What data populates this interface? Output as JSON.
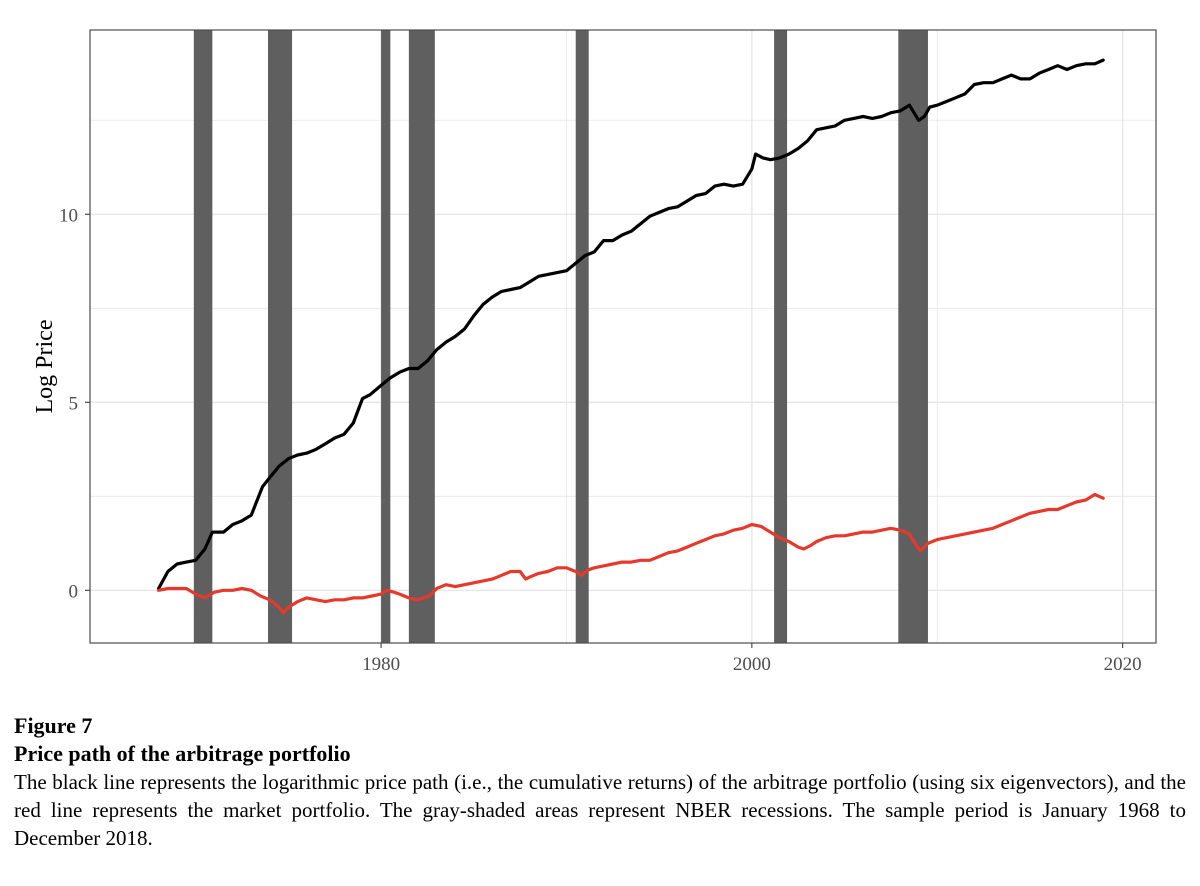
{
  "figure": {
    "label": "Figure 7",
    "title": "Price path of the arbitrage portfolio",
    "caption": "The black line represents the logarithmic price path (i.e., the cumulative returns) of the arbitrage portfolio (using six eigenvectors), and the red line represents the market portfolio. The gray-shaded areas represent NBER recessions. The sample period is January 1968 to December 2018."
  },
  "colors": {
    "arbitrage": "#000000",
    "market": "#e53a2b",
    "recession": "#5f5f5f",
    "grid": "#e6e6e6",
    "frame": "#4d4d4d"
  },
  "chart_data": {
    "type": "line",
    "xlabel": "",
    "ylabel": "Log Price",
    "xlim": [
      1964.3,
      2021.8
    ],
    "ylim": [
      -1.4,
      14.9
    ],
    "xticks": [
      1980,
      2000,
      2020
    ],
    "yticks": [
      0,
      5,
      10
    ],
    "grid": true,
    "legend": "none",
    "recessions": [
      [
        1969.9,
        1970.9
      ],
      [
        1973.9,
        1975.2
      ],
      [
        1980.0,
        1980.5
      ],
      [
        1981.5,
        1982.9
      ],
      [
        1990.5,
        1991.2
      ],
      [
        2001.2,
        2001.9
      ],
      [
        2007.9,
        2009.5
      ]
    ],
    "series": [
      {
        "key": "arbitrage",
        "x": [
          1968.0,
          1968.5,
          1969.0,
          1969.5,
          1970.0,
          1970.5,
          1970.9,
          1971.5,
          1972.0,
          1972.5,
          1973.0,
          1973.6,
          1974.0,
          1974.5,
          1975.0,
          1975.5,
          1976.0,
          1976.5,
          1977.0,
          1977.5,
          1978.0,
          1978.5,
          1979.0,
          1979.4,
          1980.0,
          1980.5,
          1981.0,
          1981.5,
          1982.0,
          1982.5,
          1983.0,
          1983.5,
          1984.0,
          1984.5,
          1985.0,
          1985.5,
          1986.0,
          1986.5,
          1987.0,
          1987.5,
          1988.0,
          1988.5,
          1989.0,
          1989.5,
          1990.0,
          1990.5,
          1991.0,
          1991.5,
          1992.0,
          1992.5,
          1993.0,
          1993.5,
          1994.0,
          1994.5,
          1995.0,
          1995.5,
          1996.0,
          1996.5,
          1997.0,
          1997.5,
          1998.0,
          1998.5,
          1999.0,
          1999.5,
          2000.0,
          2000.2,
          2000.6,
          2001.0,
          2001.5,
          2002.0,
          2002.5,
          2003.0,
          2003.5,
          2004.0,
          2004.5,
          2005.0,
          2005.5,
          2006.0,
          2006.5,
          2007.0,
          2007.5,
          2008.0,
          2008.5,
          2009.0,
          2009.3,
          2009.6,
          2010.0,
          2010.5,
          2011.0,
          2011.5,
          2012.0,
          2012.5,
          2013.0,
          2013.5,
          2014.0,
          2014.5,
          2015.0,
          2015.5,
          2016.0,
          2016.5,
          2017.0,
          2017.5,
          2018.0,
          2018.5,
          2018.95
        ],
        "y": [
          0.05,
          0.5,
          0.7,
          0.75,
          0.8,
          1.1,
          1.55,
          1.55,
          1.75,
          1.85,
          2.0,
          2.75,
          3.0,
          3.3,
          3.5,
          3.6,
          3.65,
          3.75,
          3.9,
          4.05,
          4.15,
          4.45,
          5.1,
          5.2,
          5.45,
          5.65,
          5.8,
          5.9,
          5.9,
          6.1,
          6.4,
          6.6,
          6.75,
          6.95,
          7.3,
          7.6,
          7.8,
          7.95,
          8.0,
          8.05,
          8.2,
          8.35,
          8.4,
          8.45,
          8.5,
          8.7,
          8.9,
          9.0,
          9.3,
          9.3,
          9.45,
          9.55,
          9.75,
          9.95,
          10.05,
          10.15,
          10.2,
          10.35,
          10.5,
          10.55,
          10.75,
          10.8,
          10.75,
          10.8,
          11.2,
          11.6,
          11.5,
          11.45,
          11.5,
          11.6,
          11.75,
          11.95,
          12.25,
          12.3,
          12.35,
          12.5,
          12.55,
          12.6,
          12.55,
          12.6,
          12.7,
          12.75,
          12.9,
          12.5,
          12.6,
          12.85,
          12.9,
          13.0,
          13.1,
          13.2,
          13.45,
          13.5,
          13.5,
          13.6,
          13.7,
          13.6,
          13.6,
          13.75,
          13.85,
          13.95,
          13.85,
          13.95,
          14.0,
          14.0,
          14.1
        ]
      },
      {
        "key": "market",
        "x": [
          1968.0,
          1968.5,
          1969.0,
          1969.5,
          1970.0,
          1970.5,
          1971.0,
          1971.5,
          1972.0,
          1972.5,
          1973.0,
          1973.5,
          1974.0,
          1974.5,
          1974.75,
          1975.0,
          1975.5,
          1976.0,
          1976.5,
          1977.0,
          1977.5,
          1978.0,
          1978.5,
          1979.0,
          1979.5,
          1980.0,
          1980.3,
          1980.7,
          1981.0,
          1981.5,
          1982.0,
          1982.6,
          1983.0,
          1983.5,
          1984.0,
          1984.5,
          1985.0,
          1985.5,
          1986.0,
          1986.5,
          1987.0,
          1987.5,
          1987.8,
          1988.0,
          1988.5,
          1989.0,
          1989.5,
          1990.0,
          1990.5,
          1990.8,
          1991.2,
          1991.5,
          1992.0,
          1992.5,
          1993.0,
          1993.5,
          1994.0,
          1994.5,
          1995.0,
          1995.5,
          1996.0,
          1996.5,
          1997.0,
          1997.5,
          1998.0,
          1998.5,
          1999.0,
          1999.5,
          2000.0,
          2000.5,
          2001.0,
          2001.5,
          2002.0,
          2002.5,
          2002.8,
          2003.2,
          2003.5,
          2004.0,
          2004.5,
          2005.0,
          2005.5,
          2006.0,
          2006.5,
          2007.0,
          2007.5,
          2008.0,
          2008.5,
          2008.8,
          2009.1,
          2009.5,
          2010.0,
          2010.5,
          2011.0,
          2011.5,
          2012.0,
          2012.5,
          2013.0,
          2013.5,
          2014.0,
          2014.5,
          2015.0,
          2015.5,
          2016.0,
          2016.5,
          2017.0,
          2017.5,
          2018.0,
          2018.5,
          2018.95
        ],
        "y": [
          0.0,
          0.05,
          0.05,
          0.05,
          -0.1,
          -0.2,
          -0.05,
          0.0,
          0.0,
          0.05,
          0.0,
          -0.15,
          -0.25,
          -0.45,
          -0.6,
          -0.45,
          -0.3,
          -0.2,
          -0.25,
          -0.3,
          -0.25,
          -0.25,
          -0.2,
          -0.2,
          -0.15,
          -0.1,
          0.0,
          -0.05,
          -0.1,
          -0.2,
          -0.25,
          -0.15,
          0.05,
          0.15,
          0.1,
          0.15,
          0.2,
          0.25,
          0.3,
          0.4,
          0.5,
          0.5,
          0.3,
          0.35,
          0.45,
          0.5,
          0.6,
          0.6,
          0.5,
          0.4,
          0.55,
          0.6,
          0.65,
          0.7,
          0.75,
          0.75,
          0.8,
          0.8,
          0.9,
          1.0,
          1.05,
          1.15,
          1.25,
          1.35,
          1.45,
          1.5,
          1.6,
          1.65,
          1.75,
          1.7,
          1.55,
          1.4,
          1.3,
          1.15,
          1.1,
          1.2,
          1.3,
          1.4,
          1.45,
          1.45,
          1.5,
          1.55,
          1.55,
          1.6,
          1.65,
          1.6,
          1.5,
          1.25,
          1.05,
          1.25,
          1.35,
          1.4,
          1.45,
          1.5,
          1.55,
          1.6,
          1.65,
          1.75,
          1.85,
          1.95,
          2.05,
          2.1,
          2.15,
          2.15,
          2.25,
          2.35,
          2.4,
          2.55,
          2.45
        ]
      }
    ]
  }
}
